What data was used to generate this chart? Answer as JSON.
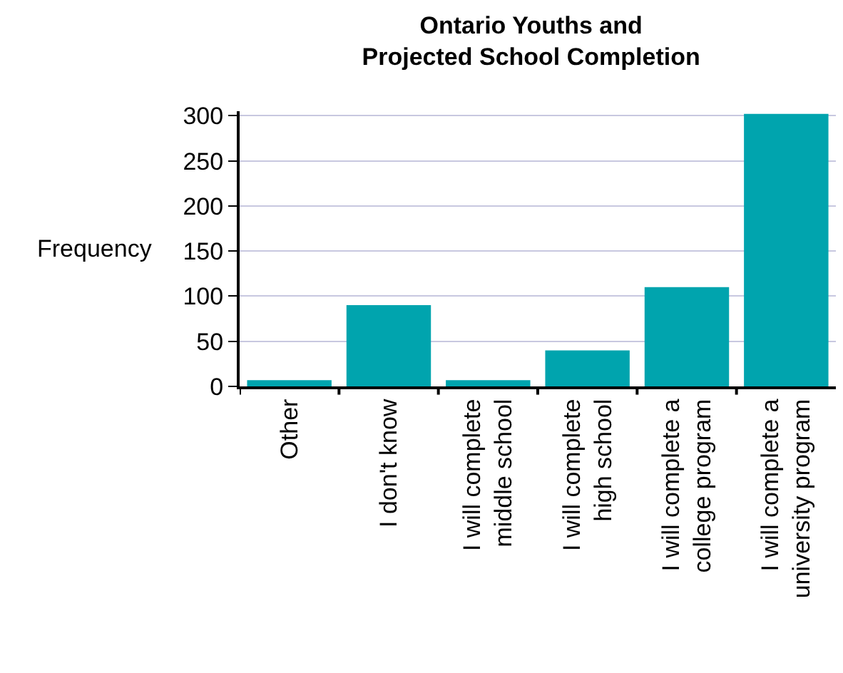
{
  "chart_data": {
    "type": "bar",
    "title": "Ontario Youths and Projected School Completion",
    "ylabel": "Frequency",
    "categories": [
      "Other",
      "I don't know",
      "I will complete middle school",
      "I will complete high school",
      "I will complete a college program",
      "I will complete a university program"
    ],
    "values": [
      7,
      90,
      7,
      40,
      110,
      302
    ],
    "color": "#00a4ae",
    "ylim": [
      0,
      305
    ],
    "yticks": [
      0,
      50,
      100,
      150,
      200,
      250,
      300
    ],
    "grid": "y"
  }
}
